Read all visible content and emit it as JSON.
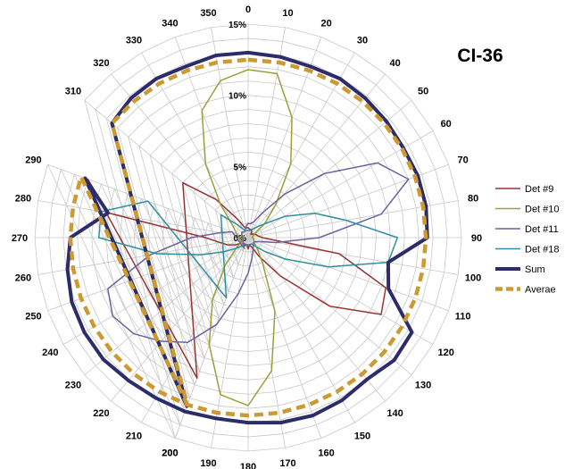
{
  "chart_data": {
    "type": "radar",
    "title": "CI-36",
    "angles": [
      0,
      10,
      20,
      30,
      40,
      50,
      60,
      70,
      80,
      90,
      100,
      110,
      120,
      130,
      140,
      150,
      160,
      170,
      180,
      190,
      200,
      210,
      220,
      230,
      240,
      250,
      260,
      270,
      280,
      290,
      200,
      310,
      320,
      330,
      340,
      350
    ],
    "angle_tick_labels": [
      "0",
      "10",
      "20",
      "30",
      "40",
      "50",
      "60",
      "70",
      "80",
      "90",
      "100",
      "110",
      "120",
      "130",
      "140",
      "150",
      "160",
      "170",
      "180",
      "190",
      "200",
      "210",
      "220",
      "230",
      "240",
      "250",
      "260",
      "270",
      "280",
      "290",
      "200",
      "310",
      "320",
      "330",
      "340",
      "350"
    ],
    "radial_range": [
      0,
      15
    ],
    "radial_ticks": [
      0,
      5,
      10,
      15
    ],
    "radial_tick_labels": [
      "0%",
      "5%",
      "10%",
      "15%"
    ],
    "grid": true,
    "legend_position": "right",
    "series": [
      {
        "name": "Det #9",
        "color": "#993333",
        "line_width": 1.5,
        "dash": false,
        "values": [
          0.7,
          0.6,
          0.6,
          0.5,
          0.3,
          0.4,
          0.5,
          0.6,
          0.7,
          1.0,
          6.5,
          10.3,
          10.8,
          7.5,
          3.5,
          1.5,
          0.7,
          0.5,
          0.8,
          0.5,
          0.6,
          0.5,
          0.6,
          0.6,
          1.0,
          1.5,
          2.0,
          3.0,
          10.0,
          12.0,
          10.5,
          6.0,
          3.5,
          1.5,
          0.8,
          0.7
        ]
      },
      {
        "name": "Det #10",
        "color": "#99A03A",
        "line_width": 1.5,
        "dash": false,
        "values": [
          11.8,
          11.7,
          9.0,
          6.0,
          3.0,
          1.5,
          0.5,
          0.4,
          0.3,
          0.3,
          0.4,
          0.4,
          0.5,
          0.5,
          1.0,
          2.0,
          5.5,
          9.5,
          11.8,
          11.2,
          8.0,
          5.0,
          2.5,
          1.0,
          0.5,
          0.3,
          0.3,
          0.3,
          0.3,
          0.5,
          0.8,
          1.5,
          3.0,
          6.0,
          9.5,
          11.2
        ]
      },
      {
        "name": "Det #11",
        "color": "#7060A0",
        "line_width": 1.5,
        "dash": false,
        "values": [
          1.0,
          1.0,
          1.2,
          2.0,
          4.0,
          7.0,
          10.5,
          12.0,
          9.5,
          5.0,
          2.0,
          0.8,
          0.6,
          0.5,
          0.6,
          0.7,
          1.0,
          1.5,
          2.5,
          4.0,
          6.5,
          8.5,
          9.5,
          10.5,
          11.0,
          10.5,
          7.0,
          4.0,
          2.0,
          1.2,
          0.8,
          0.6,
          0.5,
          0.5,
          0.6,
          0.8
        ]
      },
      {
        "name": "Det #18",
        "color": "#2E8FA0",
        "line_width": 1.5,
        "dash": false,
        "values": [
          0.5,
          0.5,
          0.6,
          0.7,
          1.0,
          1.5,
          3.0,
          5.0,
          7.0,
          10.5,
          10.0,
          6.0,
          3.0,
          1.5,
          0.8,
          0.5,
          0.5,
          0.5,
          0.5,
          0.5,
          0.5,
          0.6,
          0.8,
          1.2,
          2.0,
          3.5,
          6.5,
          10.5,
          10.5,
          7.5,
          4.5,
          2.5,
          1.2,
          0.7,
          0.5,
          0.5
        ]
      },
      {
        "name": "Sum",
        "color": "#2C2C6A",
        "line_width": 4,
        "dash": false,
        "values": [
          13.0,
          12.9,
          12.8,
          12.9,
          12.8,
          12.7,
          12.6,
          12.7,
          12.7,
          12.6,
          10.0,
          10.5,
          13.3,
          13.4,
          13.0,
          13.2,
          13.3,
          13.2,
          13.0,
          12.9,
          13.0,
          13.0,
          13.1,
          13.3,
          13.3,
          13.2,
          12.9,
          12.5,
          10.0,
          12.2,
          12.6,
          12.5,
          12.8,
          12.9,
          12.8,
          13.0
        ]
      },
      {
        "name": "Averae",
        "color": "#CC9933",
        "line_width": 4.5,
        "dash": true,
        "values": [
          12.5,
          12.5,
          12.5,
          12.5,
          12.5,
          12.5,
          12.5,
          12.5,
          12.5,
          12.5,
          12.5,
          12.5,
          12.5,
          12.5,
          12.5,
          12.5,
          12.5,
          12.5,
          12.5,
          12.5,
          12.5,
          12.5,
          12.5,
          12.5,
          12.5,
          12.5,
          12.5,
          12.5,
          12.5,
          12.5,
          12.5,
          12.5,
          12.5,
          12.5,
          12.5,
          12.5
        ]
      }
    ]
  }
}
